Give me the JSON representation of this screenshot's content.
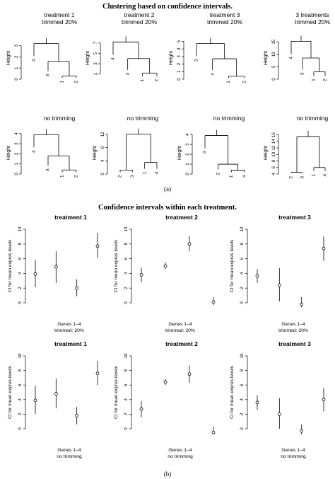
{
  "figure": {
    "top_title": "Clustering based on confidence intervals.",
    "top_caption": "(a)",
    "bottom_title": "Confidence intervals within each treatment.",
    "bottom_caption": "(b)"
  },
  "chart_data": [
    {
      "type": "dendrogram",
      "title": "treatment 1\ntrimmed 20%",
      "ylabel": "Height",
      "yticks": [
        0.0,
        1.0,
        2.0,
        3.0
      ],
      "ylim": [
        0,
        3.8
      ],
      "merges": [
        {
          "a": "1",
          "b": "2",
          "h": 0.3
        },
        {
          "a": "3",
          "b": "m0",
          "h": 1.6
        },
        {
          "a": "4",
          "b": "m1",
          "h": 3.2
        }
      ],
      "leaves": [
        "4",
        "3",
        "1",
        "2"
      ]
    },
    {
      "type": "dendrogram",
      "title": "treatment 2\ntrimmed 20%",
      "ylabel": "Height",
      "yticks": [
        1,
        3,
        5,
        7
      ],
      "ylim": [
        0,
        8.2
      ],
      "merges": [
        {
          "a": "1",
          "b": "2",
          "h": 1.2
        },
        {
          "a": "3",
          "b": "m0",
          "h": 4.0
        },
        {
          "a": "4",
          "b": "m1",
          "h": 7.2
        }
      ],
      "leaves": [
        "4",
        "3",
        "1",
        "2"
      ]
    },
    {
      "type": "dendrogram",
      "title": "treatment 3\ntrimmed 20%",
      "ylabel": "Height",
      "yticks": [
        0,
        1,
        2,
        3,
        4,
        5
      ],
      "ylim": [
        0,
        5.6
      ],
      "merges": [
        {
          "a": "1",
          "b": "2",
          "h": 0.4
        },
        {
          "a": "4",
          "b": "m0",
          "h": 2.7
        },
        {
          "a": "3",
          "b": "m1",
          "h": 4.7
        }
      ],
      "leaves": [
        "3",
        "4",
        "1",
        "2"
      ]
    },
    {
      "type": "dendrogram",
      "title": "3 treatments\ntrimmed 20%",
      "ylabel": "Height",
      "yticks": [
        0,
        5,
        10,
        15
      ],
      "ylim": [
        0,
        17
      ],
      "merges": [
        {
          "a": "1",
          "b": "2",
          "h": 3.0
        },
        {
          "a": "3",
          "b": "m0",
          "h": 8.5
        },
        {
          "a": "4",
          "b": "m1",
          "h": 15.2
        }
      ],
      "leaves": [
        "4",
        "3",
        "1",
        "2"
      ]
    },
    {
      "type": "dendrogram",
      "title": "no trimming",
      "ylabel": "Height",
      "yticks": [
        0,
        1,
        2,
        3,
        4
      ],
      "ylim": [
        0,
        4.2
      ],
      "merges": [
        {
          "a": "1",
          "b": "2",
          "h": 0.4
        },
        {
          "a": "3",
          "b": "m0",
          "h": 1.8
        },
        {
          "a": "4",
          "b": "m1",
          "h": 3.9
        }
      ],
      "leaves": [
        "4",
        "3",
        "1",
        "2"
      ]
    },
    {
      "type": "dendrogram",
      "title": "no trimming",
      "ylabel": "Height",
      "yticks": [
        0,
        4,
        8,
        12
      ],
      "ylim": [
        0,
        12.8
      ],
      "merges": [
        {
          "a": "2",
          "b": "3",
          "h": 1.2
        },
        {
          "a": "1",
          "b": "4",
          "h": 3.5
        },
        {
          "a": "m0",
          "b": "m1",
          "h": 12.0
        }
      ],
      "leaves": [
        "2",
        "3",
        "1",
        "4"
      ]
    },
    {
      "type": "dendrogram",
      "title": "no trimming",
      "ylabel": "Height",
      "yticks": [
        0,
        1,
        2,
        3,
        4
      ],
      "ylim": [
        0,
        4.3
      ],
      "merges": [
        {
          "a": "1",
          "b": "4",
          "h": 0.4
        },
        {
          "a": "2",
          "b": "m0",
          "h": 1.0
        },
        {
          "a": "3",
          "b": "m1",
          "h": 3.9
        }
      ],
      "leaves": [
        "3",
        "2",
        "1",
        "4"
      ]
    },
    {
      "type": "dendrogram",
      "title": "no trimming",
      "ylabel": "Height",
      "yticks": [
        4,
        6,
        8,
        10,
        12,
        14,
        16
      ],
      "ylim": [
        4,
        17
      ],
      "merges": [
        {
          "a": "2",
          "b": "3",
          "h": 4.5
        },
        {
          "a": "1",
          "b": "4",
          "h": 6.0
        },
        {
          "a": "m0",
          "b": "m1",
          "h": 15.5
        }
      ],
      "leaves": [
        "2",
        "3",
        "1",
        "4"
      ]
    },
    {
      "type": "errorbar",
      "title": "treatment 1",
      "ylabel": "CI for mean expres levels",
      "xlabel": "Genes 1–4\ntrimmed: 20%",
      "yticks": [
        0,
        2,
        4,
        6,
        8,
        10
      ],
      "ylim": [
        0,
        10
      ],
      "points": [
        {
          "x": 1,
          "y": 3.9,
          "lo": 2.1,
          "hi": 5.8
        },
        {
          "x": 2,
          "y": 4.9,
          "lo": 2.7,
          "hi": 7.0
        },
        {
          "x": 3,
          "y": 2.0,
          "lo": 0.9,
          "hi": 3.2
        },
        {
          "x": 4,
          "y": 7.7,
          "lo": 6.1,
          "hi": 9.5
        }
      ]
    },
    {
      "type": "errorbar",
      "title": "treatment 2",
      "ylabel": "CI for mean expres levels",
      "xlabel": "Genes 1–4\ntrimmed: 20%",
      "yticks": [
        0,
        2,
        4,
        6,
        8,
        10
      ],
      "ylim": [
        0,
        10
      ],
      "points": [
        {
          "x": 1,
          "y": 3.8,
          "lo": 2.8,
          "hi": 4.8
        },
        {
          "x": 2,
          "y": 5.0,
          "lo": 4.6,
          "hi": 5.5
        },
        {
          "x": 3,
          "y": 8.0,
          "lo": 7.0,
          "hi": 9.1
        },
        {
          "x": 4,
          "y": 0.1,
          "lo": -0.3,
          "hi": 0.8
        }
      ]
    },
    {
      "type": "errorbar",
      "title": "treatment 3",
      "ylabel": "CI for mean expres levels",
      "xlabel": "Genes 1–4\ntrimmed: 20%",
      "yticks": [
        0,
        2,
        4,
        6,
        8,
        10
      ],
      "ylim": [
        0,
        10
      ],
      "points": [
        {
          "x": 1,
          "y": 3.7,
          "lo": 2.7,
          "hi": 4.6
        },
        {
          "x": 2,
          "y": 2.4,
          "lo": 0.2,
          "hi": 4.7
        },
        {
          "x": 3,
          "y": -0.2,
          "lo": -0.6,
          "hi": 0.8
        },
        {
          "x": 4,
          "y": 7.4,
          "lo": 5.7,
          "hi": 9.0
        }
      ]
    },
    {
      "type": "errorbar",
      "title": "treatment 1",
      "ylabel": "CI for mean expres levels",
      "xlabel": "Genes 1–4\nno trimming",
      "yticks": [
        0,
        2,
        4,
        6,
        8,
        10
      ],
      "ylim": [
        0,
        10
      ],
      "points": [
        {
          "x": 1,
          "y": 3.9,
          "lo": 2.0,
          "hi": 5.9
        },
        {
          "x": 2,
          "y": 4.8,
          "lo": 2.8,
          "hi": 6.9
        },
        {
          "x": 3,
          "y": 1.8,
          "lo": 0.6,
          "hi": 3.0
        },
        {
          "x": 4,
          "y": 7.6,
          "lo": 6.0,
          "hi": 9.3
        }
      ]
    },
    {
      "type": "errorbar",
      "title": "treatment 2",
      "ylabel": "CI for mean expres levels",
      "xlabel": "Genes 1–4\nno trimming",
      "yticks": [
        0,
        2,
        4,
        6,
        8,
        10
      ],
      "ylim": [
        0,
        10
      ],
      "points": [
        {
          "x": 1,
          "y": 2.7,
          "lo": 1.6,
          "hi": 3.8
        },
        {
          "x": 2,
          "y": 6.4,
          "lo": 6.0,
          "hi": 6.8
        },
        {
          "x": 3,
          "y": 7.5,
          "lo": 6.3,
          "hi": 8.7
        },
        {
          "x": 4,
          "y": -0.5,
          "lo": -1.5,
          "hi": 0.3
        }
      ]
    },
    {
      "type": "errorbar",
      "title": "treatment 3",
      "ylabel": "CI for mean expres levels",
      "xlabel": "Genes 1–4\nno trimming",
      "yticks": [
        0,
        2,
        4,
        6,
        8,
        10
      ],
      "ylim": [
        0,
        10
      ],
      "points": [
        {
          "x": 1,
          "y": 3.6,
          "lo": 2.6,
          "hi": 4.6
        },
        {
          "x": 2,
          "y": 2.0,
          "lo": 0.0,
          "hi": 4.2
        },
        {
          "x": 3,
          "y": -0.3,
          "lo": -0.8,
          "hi": 0.6
        },
        {
          "x": 4,
          "y": 4.0,
          "lo": 2.4,
          "hi": 5.6
        }
      ]
    }
  ]
}
